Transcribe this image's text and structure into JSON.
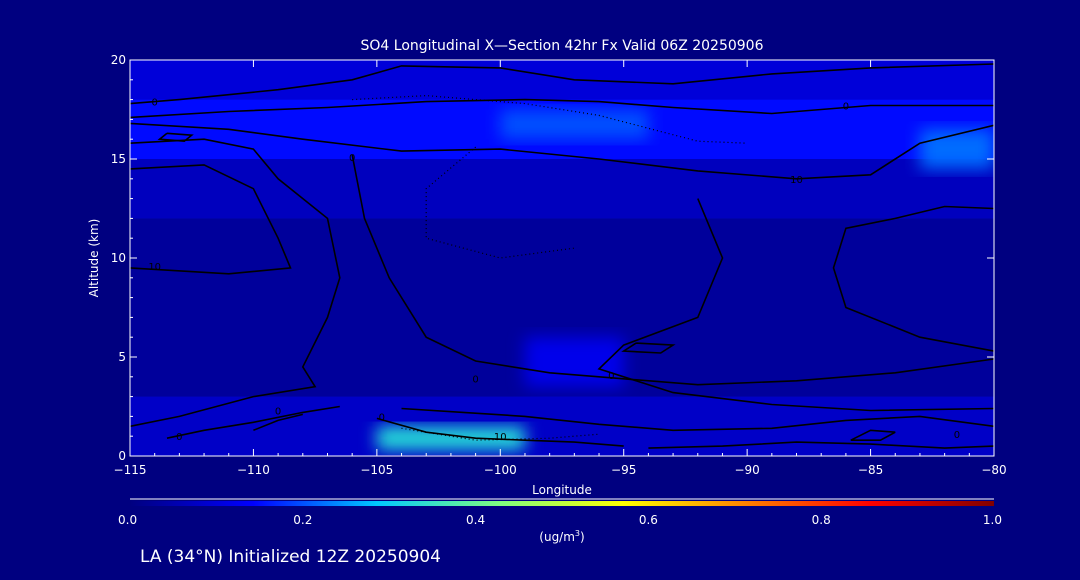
{
  "chart_data": {
    "type": "heatmap",
    "title": "SO4 Longitudinal X—Section 42hr  Fx Valid 06Z 20250906",
    "xlabel": "Longitude",
    "ylabel": "Altitude (km)",
    "xlim": [
      -115,
      -80
    ],
    "ylim": [
      0,
      20
    ],
    "x_ticks": [
      -115,
      -110,
      -105,
      -100,
      -95,
      -90,
      -85,
      -80
    ],
    "x_tick_labels": [
      "−115",
      "−110",
      "−105",
      "−100",
      "−95",
      "−90",
      "−85",
      "−80"
    ],
    "y_ticks": [
      0,
      5,
      10,
      15,
      20
    ],
    "y_tick_labels": [
      "0",
      "5",
      "10",
      "15",
      "20"
    ],
    "colorbar": {
      "label_prefix": "(ug/m",
      "label_sup": "3",
      "label_suffix": ")",
      "range": [
        0.0,
        1.0
      ],
      "ticks": [
        0.0,
        0.2,
        0.4,
        0.6,
        0.8,
        1.0
      ],
      "tick_labels": [
        "0.0",
        "0.2",
        "0.4",
        "0.6",
        "0.8",
        "1.0"
      ],
      "colors": [
        "#000080",
        "#0000ff",
        "#00c8ff",
        "#80ff80",
        "#ffff00",
        "#ff8000",
        "#ff0000",
        "#800000"
      ]
    },
    "field": [
      {
        "lon": [
          -115,
          -80
        ],
        "alt": [
          0,
          3
        ],
        "value": 0.08
      },
      {
        "lon": [
          -115,
          -80
        ],
        "alt": [
          3,
          12
        ],
        "value": 0.03
      },
      {
        "lon": [
          -115,
          -80
        ],
        "alt": [
          12,
          15
        ],
        "value": 0.07
      },
      {
        "lon": [
          -115,
          -80
        ],
        "alt": [
          15,
          18
        ],
        "value": 0.15
      },
      {
        "lon": [
          -115,
          -80
        ],
        "alt": [
          18,
          20
        ],
        "value": 0.1
      },
      {
        "lon": [
          -105,
          -99
        ],
        "alt": [
          0.3,
          1.5
        ],
        "value": 0.33
      },
      {
        "lon": [
          -83,
          -80
        ],
        "alt": [
          14.5,
          16.5
        ],
        "value": 0.22
      },
      {
        "lon": [
          -100,
          -94
        ],
        "alt": [
          16,
          17.5
        ],
        "value": 0.2
      },
      {
        "lon": [
          -99,
          -95
        ],
        "alt": [
          3.5,
          6
        ],
        "value": 0.12
      }
    ],
    "contour_labels": [
      {
        "text": "0",
        "lon": -114,
        "alt": 17.7
      },
      {
        "text": "0",
        "lon": -86,
        "alt": 17.5
      },
      {
        "text": "0",
        "lon": -106,
        "alt": 14.9
      },
      {
        "text": "10",
        "lon": -88,
        "alt": 13.8
      },
      {
        "text": "10",
        "lon": -114,
        "alt": 9.4
      },
      {
        "text": "0",
        "lon": -101,
        "alt": 3.7
      },
      {
        "text": "0",
        "lon": -95.5,
        "alt": 3.9
      },
      {
        "text": "0",
        "lon": -109,
        "alt": 2.1
      },
      {
        "text": "0",
        "lon": -104.8,
        "alt": 1.8
      },
      {
        "text": "0",
        "lon": -113,
        "alt": 0.8
      },
      {
        "text": "10",
        "lon": -100,
        "alt": 0.8
      },
      {
        "text": "0",
        "lon": -81.5,
        "alt": 0.9
      }
    ]
  },
  "footer": {
    "text": "LA (34°N) Initialized 12Z 20250904"
  }
}
